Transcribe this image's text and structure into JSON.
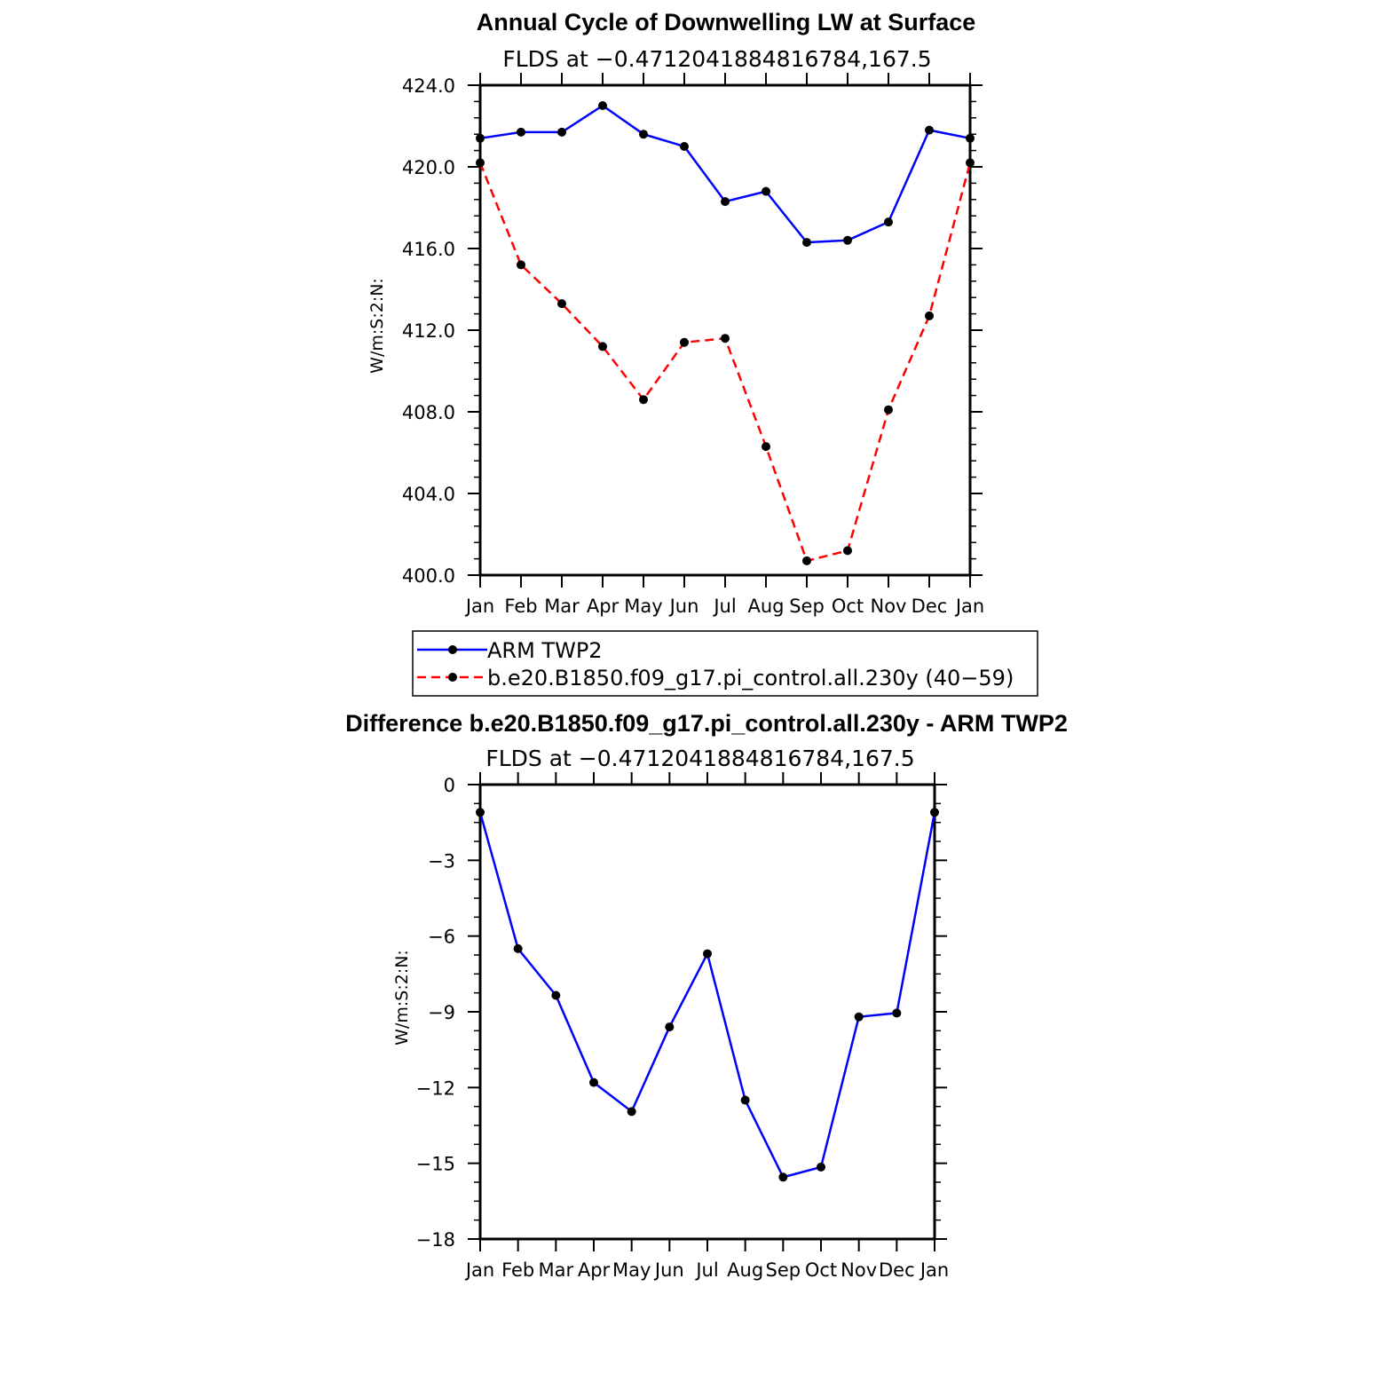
{
  "chart_data": [
    {
      "type": "line",
      "title": "Annual Cycle of Downwelling LW at Surface",
      "subtitle": "FLDS at −0.4712041884816784,167.5",
      "xlabel": "",
      "ylabel": "W/m:S:2:N:",
      "categories": [
        "Jan",
        "Feb",
        "Mar",
        "Apr",
        "May",
        "Jun",
        "Jul",
        "Aug",
        "Sep",
        "Oct",
        "Nov",
        "Dec",
        "Jan"
      ],
      "ylim": [
        400,
        424
      ],
      "yticks": [
        400,
        404,
        408,
        412,
        416,
        420,
        424
      ],
      "yticklabels": [
        "400.0",
        "404.0",
        "408.0",
        "412.0",
        "416.0",
        "420.0",
        "424.0"
      ],
      "series": [
        {
          "name": "ARM TWP2",
          "color": "#0000ff",
          "dash": "solid",
          "values": [
            421.4,
            421.7,
            421.7,
            423.0,
            421.6,
            421.0,
            418.3,
            418.8,
            416.3,
            416.4,
            417.3,
            421.8,
            421.4
          ]
        },
        {
          "name": "b.e20.B1850.f09_g17.pi_control.all.230y (40−59)",
          "color": "#ff0000",
          "dash": "dashed",
          "values": [
            420.2,
            415.2,
            413.3,
            411.2,
            408.6,
            411.4,
            411.6,
            406.3,
            400.7,
            401.2,
            408.1,
            412.7,
            420.2
          ]
        }
      ],
      "legend": {
        "placement": "below",
        "entries": [
          "ARM TWP2",
          "b.e20.B1850.f09_g17.pi_control.all.230y (40−59)"
        ]
      }
    },
    {
      "type": "line",
      "title": "Difference b.e20.B1850.f09_g17.pi_control.all.230y - ARM TWP2",
      "subtitle": "FLDS at −0.4712041884816784,167.5",
      "xlabel": "",
      "ylabel": "W/m:S:2:N:",
      "categories": [
        "Jan",
        "Feb",
        "Mar",
        "Apr",
        "May",
        "Jun",
        "Jul",
        "Aug",
        "Sep",
        "Oct",
        "Nov",
        "Dec",
        "Jan"
      ],
      "ylim": [
        -18,
        0
      ],
      "yticks": [
        -18,
        -15,
        -12,
        -9,
        -6,
        -3,
        0
      ],
      "yticklabels": [
        "−18",
        "−15",
        "−12",
        "−9",
        "−6",
        "−3",
        "0"
      ],
      "series": [
        {
          "name": "Difference",
          "color": "#0000ff",
          "dash": "solid",
          "values": [
            -1.1,
            -6.5,
            -8.35,
            -11.8,
            -12.95,
            -9.6,
            -6.7,
            -12.5,
            -15.55,
            -15.15,
            -9.2,
            -9.05,
            -1.1
          ]
        }
      ]
    }
  ]
}
